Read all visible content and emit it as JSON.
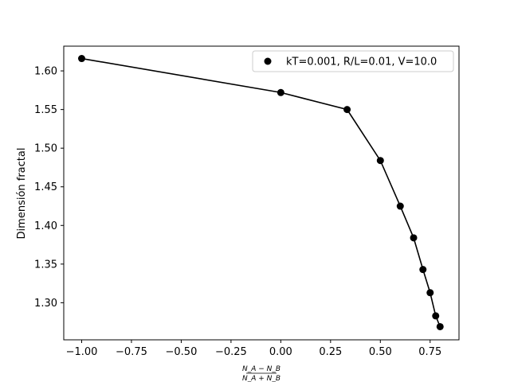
{
  "chart_data": {
    "type": "scatter",
    "xlabel": {
      "numerator": "N_A − N_B",
      "denominator": "N_A + N_B"
    },
    "ylabel": "Dimensión fractal",
    "xlim": [
      -1.09,
      0.895
    ],
    "ylim": [
      1.252,
      1.632
    ],
    "xticks": [
      -1.0,
      -0.75,
      -0.5,
      -0.25,
      0.0,
      0.25,
      0.5,
      0.75
    ],
    "xtick_labels": [
      "−1.00",
      "−0.75",
      "−0.50",
      "−0.25",
      "0.00",
      "0.25",
      "0.50",
      "0.75"
    ],
    "yticks": [
      1.3,
      1.35,
      1.4,
      1.45,
      1.5,
      1.55,
      1.6
    ],
    "ytick_labels": [
      "1.30",
      "1.35",
      "1.40",
      "1.45",
      "1.50",
      "1.55",
      "1.60"
    ],
    "legend_position": "top-right",
    "series": [
      {
        "name": "kT=0.001, R/L=0.01, V=10.0",
        "color": "#000000",
        "marker": "circle",
        "line": true,
        "x": [
          -1.0,
          0.0,
          0.333,
          0.5,
          0.6,
          0.667,
          0.714,
          0.75,
          0.778,
          0.8
        ],
        "y": [
          1.616,
          1.572,
          1.55,
          1.484,
          1.425,
          1.384,
          1.343,
          1.313,
          1.283,
          1.269
        ]
      }
    ]
  }
}
